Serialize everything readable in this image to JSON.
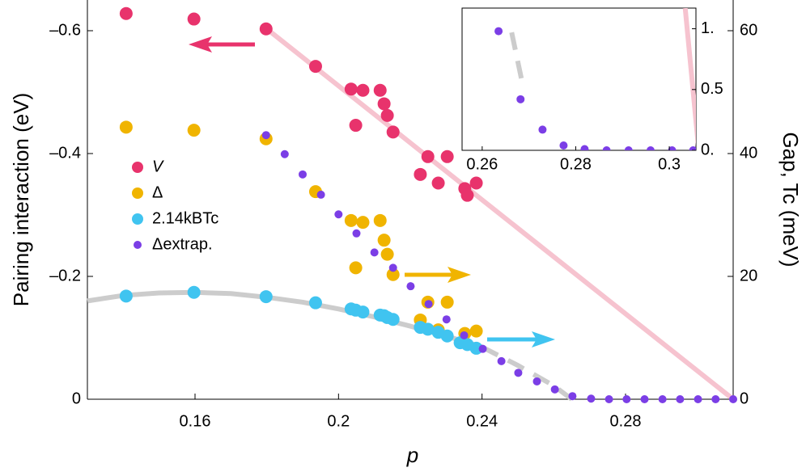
{
  "chart_data": {
    "type": "scatter",
    "xlabel": "p",
    "ylabel": "Pairing interaction (eV)",
    "y2label": "Gap, Tc (meV)",
    "xlim": [
      0.13,
      0.31
    ],
    "ylim": [
      0,
      -0.65
    ],
    "y2lim": [
      0,
      65
    ],
    "xticks": [
      0.16,
      0.2,
      0.24,
      0.28
    ],
    "yticks": [
      0,
      {
        "value": -0.2,
        "label": "–0.2"
      },
      {
        "value": -0.4,
        "label": "–0.4"
      },
      {
        "value": -0.6,
        "label": "–0.6"
      }
    ],
    "y2ticks": [
      0,
      20,
      40,
      60
    ],
    "lines": [
      {
        "color": "#f6c3cf",
        "axis": "y",
        "dashed": false,
        "x": [
          0.18,
          0.31
        ],
        "values": [
          -0.603,
          0
        ]
      },
      {
        "color": "#cccccc",
        "axis": "y2",
        "dashed": false,
        "x": [
          0.13,
          0.14,
          0.15,
          0.16,
          0.17,
          0.18,
          0.19,
          0.2,
          0.21,
          0.22,
          0.23,
          0.24
        ],
        "values": [
          16.0,
          16.9,
          17.3,
          17.4,
          17.2,
          16.6,
          15.8,
          14.7,
          13.4,
          11.9,
          10.3,
          8.5
        ]
      },
      {
        "color": "#cccccc",
        "axis": "y2",
        "dashed": true,
        "x": [
          0.24,
          0.25,
          0.26,
          0.265
        ],
        "values": [
          8.5,
          5.5,
          2.2,
          0
        ]
      }
    ],
    "series": [
      {
        "name": "V",
        "color": "#e8336c",
        "axis": "y",
        "x": [
          0.1408,
          0.1597,
          0.1798,
          0.1936,
          0.2035,
          0.2068,
          0.2048,
          0.2116,
          0.2127,
          0.2136,
          0.2152,
          0.2249,
          0.2303,
          0.2228,
          0.2278,
          0.2352,
          0.2359,
          0.2384
        ],
        "values": [
          -0.628,
          -0.619,
          -0.603,
          -0.542,
          -0.505,
          -0.503,
          -0.446,
          -0.503,
          -0.481,
          -0.462,
          -0.435,
          -0.395,
          -0.395,
          -0.366,
          -0.352,
          -0.343,
          -0.332,
          -0.352
        ]
      },
      {
        "name": "Δ",
        "color": "#f0b400",
        "axis": "y2",
        "x": [
          0.1408,
          0.1597,
          0.1798,
          0.1936,
          0.2035,
          0.2068,
          0.2048,
          0.2116,
          0.2127,
          0.2136,
          0.2152,
          0.2249,
          0.2303,
          0.2228,
          0.2278,
          0.2352,
          0.2384
        ],
        "values": [
          44.3,
          43.8,
          42.4,
          33.8,
          29.1,
          28.8,
          21.4,
          29.1,
          25.9,
          23.6,
          20.3,
          15.8,
          15.8,
          12.9,
          11.3,
          10.7,
          11.1
        ]
      },
      {
        "name": "2.14kBTc",
        "color": "#40c4f0",
        "axis": "y2",
        "x": [
          0.1408,
          0.1597,
          0.1798,
          0.1936,
          0.2035,
          0.2048,
          0.2068,
          0.2116,
          0.2127,
          0.2136,
          0.2152,
          0.2228,
          0.2249,
          0.2278,
          0.2303,
          0.2339,
          0.2359,
          0.2384
        ],
        "values": [
          16.8,
          17.4,
          16.7,
          15.7,
          14.7,
          14.5,
          14.2,
          13.7,
          13.6,
          13.3,
          13.0,
          11.7,
          11.4,
          10.9,
          10.3,
          9.2,
          8.9,
          8.3
        ]
      },
      {
        "name": "Δextrap.",
        "color": "#7b3ee6",
        "axis": "y2",
        "x": [
          0.1798,
          0.185,
          0.19,
          0.1951,
          0.2,
          0.205,
          0.21,
          0.2152,
          0.2201,
          0.2251,
          0.2301,
          0.235,
          0.2402,
          0.2454,
          0.2501,
          0.2553,
          0.2603,
          0.2652,
          0.2704,
          0.2754,
          0.2803,
          0.2853,
          0.2903,
          0.2952,
          0.3002,
          0.3051,
          0.31
        ],
        "values": [
          43.0,
          39.9,
          36.6,
          33.3,
          30.1,
          27.0,
          23.9,
          21.4,
          18.4,
          15.5,
          13.0,
          10.4,
          8.2,
          6.2,
          4.3,
          2.9,
          1.6,
          0.5,
          0.1,
          0,
          0,
          0,
          0,
          0,
          0,
          0,
          0
        ]
      }
    ],
    "inset": {
      "xlim": [
        0.2557,
        0.3057
      ],
      "ylim": [
        0,
        1.17
      ],
      "xticks": [
        0.26,
        0.28,
        0.3
      ],
      "yticks": [
        {
          "value": 0,
          "label": "0."
        },
        0.5,
        {
          "value": 1,
          "label": "1."
        }
      ],
      "lines": [
        {
          "color": "#cccccc",
          "dashed": true,
          "x": [
            0.2663,
            0.2686
          ],
          "values": [
            0.97,
            0.55
          ]
        },
        {
          "color": "#f6c3cf",
          "dashed": false,
          "x": [
            0.3034,
            0.3063
          ],
          "values": [
            1.17,
            0
          ]
        }
      ],
      "series": [
        {
          "color": "#7b3ee6",
          "x": [
            0.2635,
            0.2682,
            0.2729,
            0.2774,
            0.2819,
            0.2866,
            0.2913,
            0.296,
            0.3006,
            0.3051
          ],
          "values": [
            0.98,
            0.42,
            0.17,
            0.04,
            0.01,
            0,
            0,
            0,
            0,
            0
          ]
        }
      ]
    }
  }
}
